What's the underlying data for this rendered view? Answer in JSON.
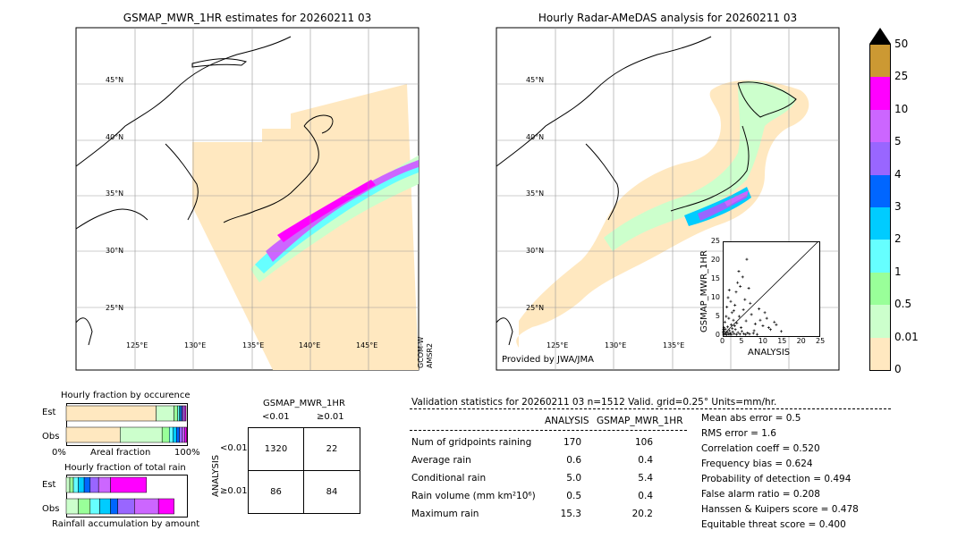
{
  "left_map": {
    "title": "GSMAP_MWR_1HR estimates for 20260211 03",
    "lat_labels": [
      "45°N",
      "40°N",
      "35°N",
      "30°N",
      "25°N"
    ],
    "lon_labels": [
      "125°E",
      "130°E",
      "135°E",
      "140°E",
      "145°E"
    ],
    "sensor_label_1": "GCOM-W",
    "sensor_label_2": "AMSR2"
  },
  "right_map": {
    "title": "Hourly Radar-AMeDAS analysis for 20260211 03",
    "lat_labels": [
      "45°N",
      "40°N",
      "35°N",
      "30°N",
      "25°N"
    ],
    "lon_labels": [
      "125°E",
      "130°E",
      "135°E"
    ],
    "credit": "Provided by JWA/JMA"
  },
  "colorbar": {
    "labels": [
      "50",
      "25",
      "10",
      "5",
      "4",
      "3",
      "2",
      "1",
      "0.5",
      "0.01",
      "0"
    ],
    "colors": [
      "#cc9933",
      "#ff00ff",
      "#cc66ff",
      "#9966ff",
      "#0066ff",
      "#00ccff",
      "#66ffff",
      "#99ff99",
      "#ccffcc",
      "#ffe8c0"
    ],
    "over_color": "#000000"
  },
  "scatter": {
    "xlabel": "ANALYSIS",
    "ylabel": "GSMAP_MWR_1HR",
    "ticks": [
      "0",
      "5",
      "10",
      "15",
      "20",
      "25"
    ],
    "ticks_y": [
      "0",
      "5",
      "10",
      "15",
      "20",
      "25"
    ]
  },
  "fraction_occurrence": {
    "title": "Hourly fraction by occurence",
    "est_label": "Est",
    "obs_label": "Obs",
    "axis_left": "0%",
    "axis_mid": "Areal fraction",
    "axis_right": "100%"
  },
  "fraction_total": {
    "title": "Hourly fraction of total rain",
    "est_label": "Est",
    "obs_label": "Obs",
    "axis_mid": "Rainfall accumulation by amount"
  },
  "contingency": {
    "title": "GSMAP_MWR_1HR",
    "col1": "<0.01",
    "col2": "≥0.01",
    "row_axis": "ANALYSIS",
    "row1": "<0.01",
    "row2": "≥0.01",
    "cells": [
      "1320",
      "22",
      "86",
      "84"
    ]
  },
  "validation": {
    "header": "Validation statistics for 20260211 03  n=1512 Valid. grid=0.25° Units=mm/hr.",
    "col_analysis": "ANALYSIS",
    "col_gsmap": "GSMAP_MWR_1HR",
    "rows": [
      {
        "label": "Num of gridpoints raining",
        "analysis": "170",
        "gsmap": "106"
      },
      {
        "label": "Average rain",
        "analysis": "0.6",
        "gsmap": "0.4"
      },
      {
        "label": "Conditional rain",
        "analysis": "5.0",
        "gsmap": "5.4"
      },
      {
        "label": "Rain volume (mm km²10⁶)",
        "analysis": "0.5",
        "gsmap": "0.4"
      },
      {
        "label": "Maximum rain",
        "analysis": "15.3",
        "gsmap": "20.2"
      }
    ],
    "scores": [
      "Mean abs error =    0.5",
      "RMS error =    1.6",
      "Correlation coeff =  0.520",
      "Frequency bias =  0.624",
      "Probability of detection =  0.494",
      "False alarm ratio =  0.208",
      "Hanssen & Kuipers score =  0.478",
      "Equitable threat score =  0.400"
    ]
  },
  "chart_data": [
    {
      "type": "scatter",
      "title": "",
      "xlabel": "ANALYSIS",
      "ylabel": "GSMAP_MWR_1HR",
      "xlim": [
        0,
        25
      ],
      "ylim": [
        0,
        25
      ],
      "points": [
        [
          0.2,
          0.3
        ],
        [
          0.5,
          0.2
        ],
        [
          0.8,
          0.5
        ],
        [
          1.0,
          0.1
        ],
        [
          1.2,
          0.8
        ],
        [
          1.5,
          0.3
        ],
        [
          1.8,
          1.2
        ],
        [
          2.0,
          0.5
        ],
        [
          2.3,
          0.2
        ],
        [
          2.6,
          0.9
        ],
        [
          3.0,
          0.4
        ],
        [
          3.3,
          1.5
        ],
        [
          3.6,
          0.2
        ],
        [
          4.0,
          0.7
        ],
        [
          4.5,
          0.3
        ],
        [
          5.0,
          1.0
        ],
        [
          5.5,
          0.4
        ],
        [
          6.0,
          0.2
        ],
        [
          6.5,
          0.6
        ],
        [
          7.0,
          0.3
        ],
        [
          8.0,
          0.5
        ],
        [
          9.0,
          0.2
        ],
        [
          0.3,
          2.0
        ],
        [
          0.6,
          3.5
        ],
        [
          0.9,
          5.0
        ],
        [
          1.1,
          7.5
        ],
        [
          1.4,
          10.0
        ],
        [
          1.7,
          12.0
        ],
        [
          2.1,
          9.0
        ],
        [
          2.4,
          6.0
        ],
        [
          2.8,
          4.0
        ],
        [
          3.2,
          8.0
        ],
        [
          3.5,
          11.5
        ],
        [
          3.9,
          14.0
        ],
        [
          4.2,
          17.0
        ],
        [
          4.6,
          13.0
        ],
        [
          5.2,
          15.5
        ],
        [
          5.8,
          9.5
        ],
        [
          6.3,
          20.2
        ],
        [
          6.8,
          12.5
        ],
        [
          7.5,
          5.5
        ],
        [
          8.5,
          3.0
        ],
        [
          9.5,
          7.0
        ],
        [
          10.5,
          2.5
        ],
        [
          11.5,
          4.5
        ],
        [
          12.5,
          1.5
        ],
        [
          13.5,
          3.5
        ],
        [
          15.3,
          1.0
        ],
        [
          0.4,
          1.0
        ],
        [
          0.7,
          1.6
        ],
        [
          1.3,
          2.2
        ],
        [
          1.6,
          4.5
        ],
        [
          2.2,
          2.8
        ],
        [
          2.9,
          6.5
        ],
        [
          3.7,
          3.2
        ],
        [
          4.8,
          2.0
        ],
        [
          0.1,
          0.8
        ],
        [
          0.2,
          1.5
        ],
        [
          1.9,
          0.2
        ],
        [
          2.5,
          1.8
        ],
        [
          3.1,
          2.5
        ],
        [
          4.3,
          5.0
        ],
        [
          5.4,
          6.8
        ],
        [
          6.1,
          3.8
        ],
        [
          7.2,
          8.5
        ],
        [
          8.2,
          1.2
        ],
        [
          9.8,
          4.0
        ],
        [
          11.0,
          6.0
        ],
        [
          12.0,
          2.0
        ],
        [
          14.0,
          2.8
        ]
      ]
    },
    {
      "type": "bar",
      "title": "Hourly fraction by occurence",
      "xlabel": "Areal fraction",
      "categories": [
        "Est",
        "Obs"
      ],
      "series": [
        {
          "color": "#ffe8c0",
          "values": [
            0.75,
            0.45
          ]
        },
        {
          "color": "#ccffcc",
          "values": [
            0.15,
            0.35
          ]
        },
        {
          "color": "#99ff99",
          "values": [
            0.03,
            0.06
          ]
        },
        {
          "color": "#66ffff",
          "values": [
            0.015,
            0.03
          ]
        },
        {
          "color": "#00ccff",
          "values": [
            0.01,
            0.03
          ]
        },
        {
          "color": "#0066ff",
          "values": [
            0.01,
            0.025
          ]
        },
        {
          "color": "#9966ff",
          "values": [
            0.012,
            0.025
          ]
        },
        {
          "color": "#cc66ff",
          "values": [
            0.015,
            0.02
          ]
        },
        {
          "color": "#ff00ff",
          "values": [
            0.008,
            0.015
          ]
        },
        {
          "color": "#cc9933",
          "values": [
            0.0,
            0.0
          ]
        }
      ]
    },
    {
      "type": "bar",
      "title": "Hourly fraction of total rain",
      "xlabel": "Rainfall accumulation by amount",
      "categories": [
        "Est",
        "Obs"
      ],
      "series": [
        {
          "color": "#ffe8c0",
          "values": [
            0.0,
            0.0
          ]
        },
        {
          "color": "#ccffcc",
          "values": [
            0.03,
            0.1
          ]
        },
        {
          "color": "#99ff99",
          "values": [
            0.03,
            0.1
          ]
        },
        {
          "color": "#66ffff",
          "values": [
            0.04,
            0.08
          ]
        },
        {
          "color": "#00ccff",
          "values": [
            0.05,
            0.09
          ]
        },
        {
          "color": "#0066ff",
          "values": [
            0.05,
            0.06
          ]
        },
        {
          "color": "#9966ff",
          "values": [
            0.07,
            0.14
          ]
        },
        {
          "color": "#cc66ff",
          "values": [
            0.1,
            0.2
          ]
        },
        {
          "color": "#ff00ff",
          "values": [
            0.3,
            0.13
          ]
        },
        {
          "color": "#cc9933",
          "values": [
            0.0,
            0.0
          ]
        }
      ]
    }
  ]
}
